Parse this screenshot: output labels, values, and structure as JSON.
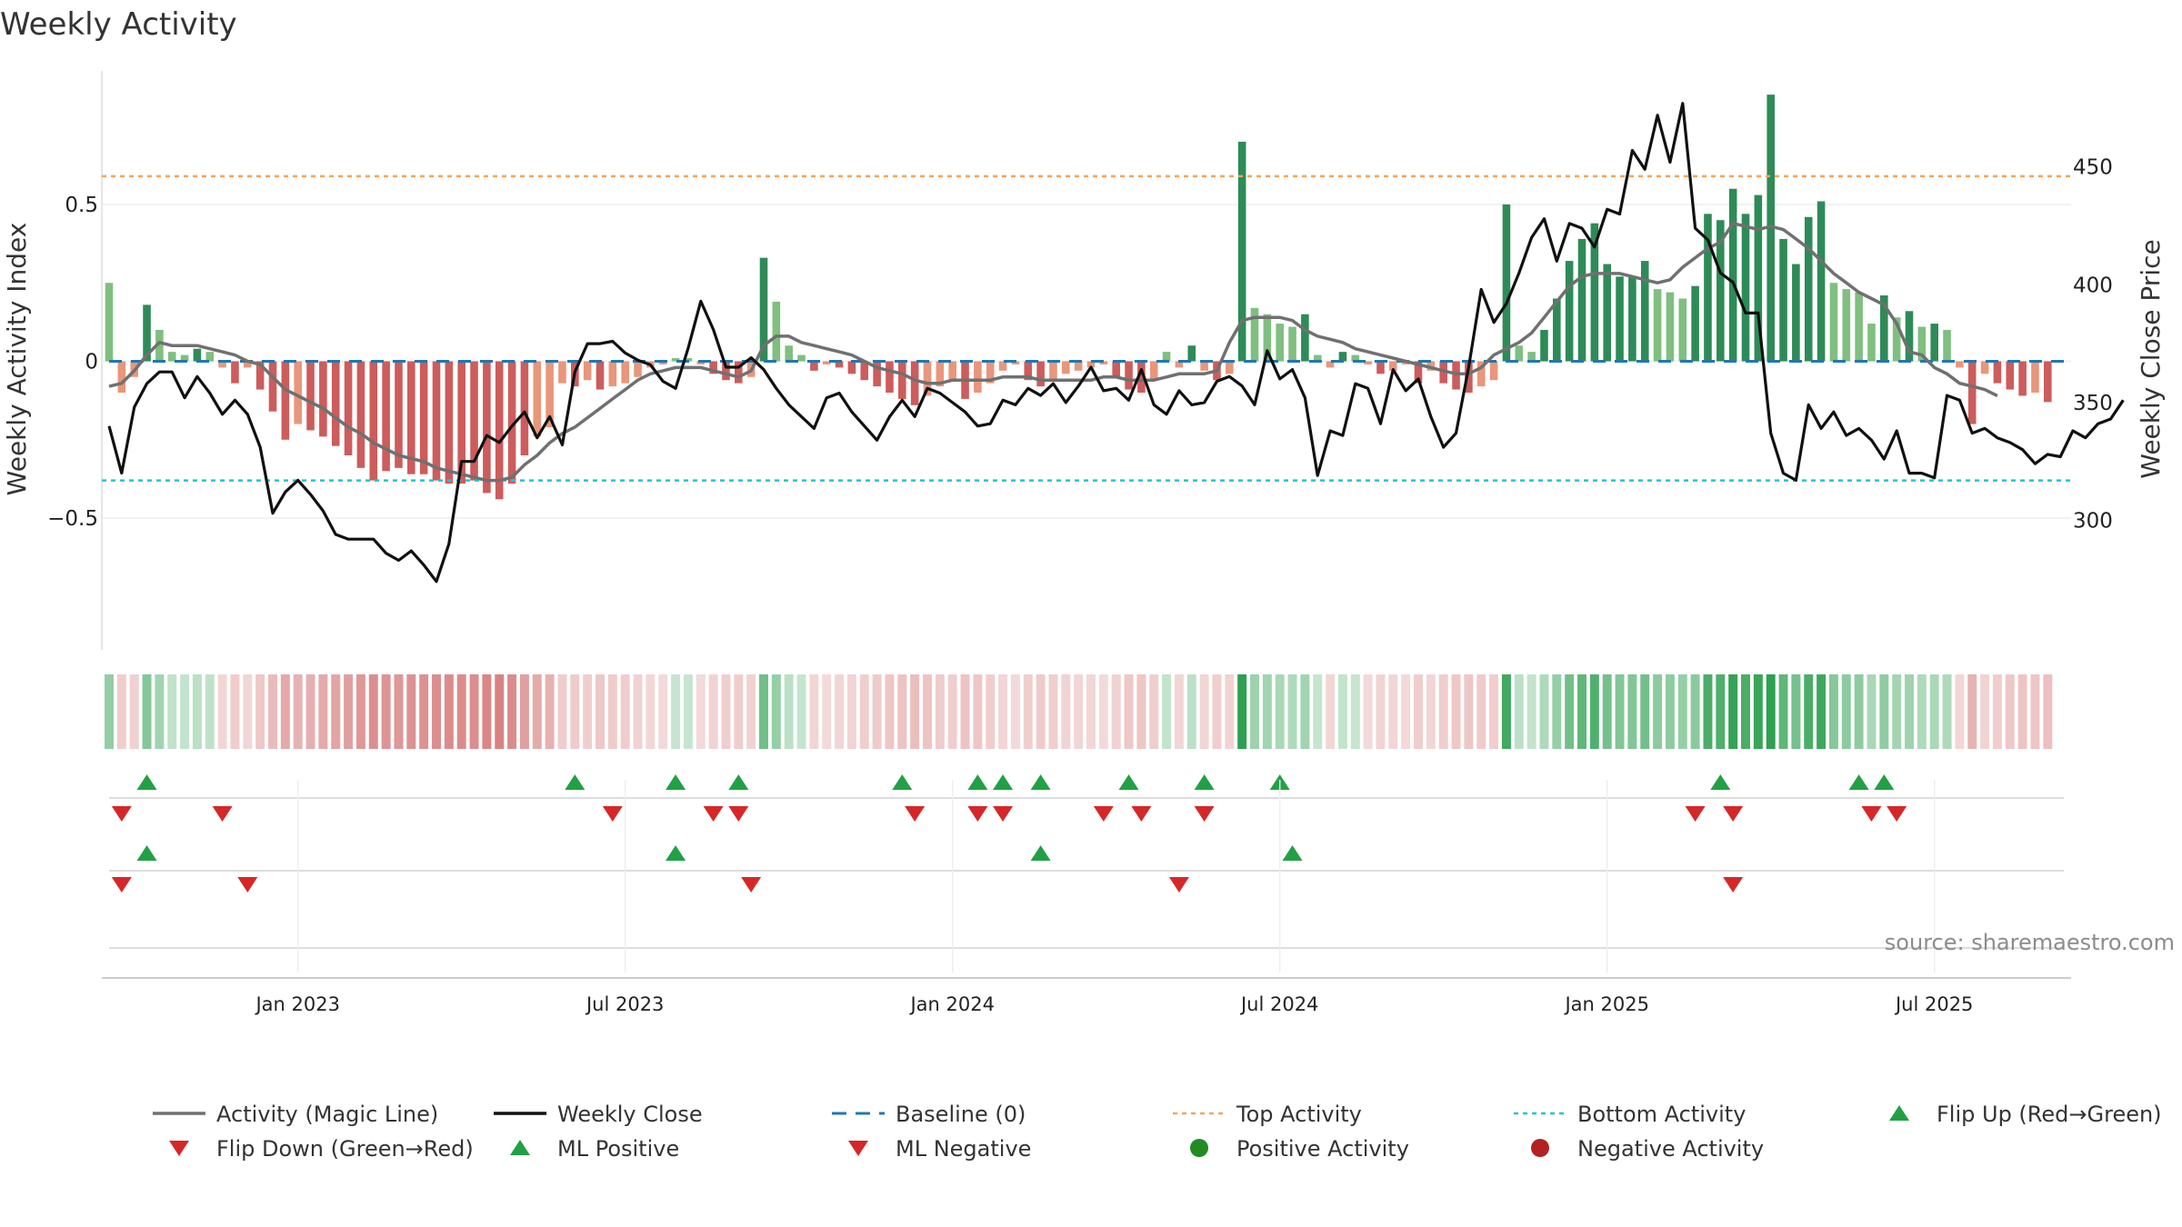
{
  "title": "Weekly Activity",
  "source": "source: sharemaestro.com",
  "colors": {
    "green_dark": "#2e8b57",
    "green_light": "#7fbf7f",
    "red_dark": "#cd5c5c",
    "red_light": "#e9967a",
    "magic": "#707070",
    "close": "#111111",
    "baseline": "#1f77b4",
    "top": "#f4a460",
    "bottom": "#20c5d0",
    "marker_up": "#22a046",
    "marker_down": "#d62728",
    "pos_dot": "#228b22",
    "neg_dot": "#b22222"
  },
  "chart_data": {
    "type": "bar+line",
    "title": "Weekly Activity",
    "ylabel_left": "Weekly Activity Index",
    "ylabel_right": "Weekly Close Price",
    "left_ylim": [
      -0.92,
      0.92
    ],
    "right_ylim": [
      245,
      490
    ],
    "left_ticks": [
      {
        "v": 0.5,
        "label": "0.5"
      },
      {
        "v": 0,
        "label": "0"
      },
      {
        "v": -0.5,
        "label": "−0.5"
      }
    ],
    "right_ticks": [
      {
        "v": 450,
        "label": "450"
      },
      {
        "v": 400,
        "label": "400"
      },
      {
        "v": 350,
        "label": "350"
      },
      {
        "v": 300,
        "label": "300"
      }
    ],
    "top_activity": 0.59,
    "bottom_activity": -0.38,
    "x_ticks": [
      {
        "w": 15,
        "label": "Jan 2023"
      },
      {
        "w": 41,
        "label": "Jul 2023"
      },
      {
        "w": 67,
        "label": "Jan 2024"
      },
      {
        "w": 93,
        "label": "Jul 2024"
      },
      {
        "w": 119,
        "label": "Jan 2025"
      },
      {
        "w": 145,
        "label": "Jul 2025"
      }
    ],
    "weeks": 157,
    "activity": [
      0.25,
      -0.1,
      -0.05,
      0.18,
      0.1,
      0.03,
      0.02,
      0.04,
      0.03,
      -0.02,
      -0.07,
      -0.02,
      -0.09,
      -0.16,
      -0.25,
      -0.2,
      -0.22,
      -0.24,
      -0.27,
      -0.3,
      -0.34,
      -0.38,
      -0.35,
      -0.34,
      -0.36,
      -0.36,
      -0.38,
      -0.39,
      -0.39,
      -0.38,
      -0.42,
      -0.44,
      -0.39,
      -0.3,
      -0.24,
      -0.21,
      -0.07,
      -0.08,
      -0.06,
      -0.09,
      -0.08,
      -0.07,
      -0.05,
      -0.02,
      -0.01,
      0.01,
      0.01,
      -0.01,
      -0.04,
      -0.06,
      -0.07,
      -0.05,
      0.33,
      0.19,
      0.05,
      0.02,
      -0.03,
      -0.01,
      -0.02,
      -0.04,
      -0.06,
      -0.08,
      -0.1,
      -0.12,
      -0.14,
      -0.11,
      -0.08,
      -0.06,
      -0.12,
      -0.1,
      -0.07,
      -0.03,
      -0.01,
      -0.06,
      -0.08,
      -0.06,
      -0.04,
      -0.03,
      -0.02,
      -0.01,
      -0.05,
      -0.09,
      -0.1,
      -0.06,
      0.03,
      -0.02,
      0.05,
      -0.03,
      -0.06,
      -0.04,
      0.7,
      0.17,
      0.15,
      0.12,
      0.11,
      0.15,
      0.02,
      -0.02,
      0.03,
      0.02,
      -0.01,
      -0.04,
      -0.03,
      -0.01,
      -0.07,
      -0.03,
      -0.07,
      -0.09,
      -0.1,
      -0.08,
      -0.06,
      0.5,
      0.05,
      0.03,
      0.1,
      0.2,
      0.32,
      0.39,
      0.44,
      0.31,
      0.27,
      0.27,
      0.32,
      0.23,
      0.22,
      0.2,
      0.24,
      0.47,
      0.45,
      0.55,
      0.47,
      0.53,
      0.85,
      0.39,
      0.31,
      0.46,
      0.51,
      0.25,
      0.23,
      0.22,
      0.12,
      0.21,
      0.14,
      0.16,
      0.11,
      0.12,
      0.1,
      -0.02,
      -0.2,
      -0.04,
      -0.07,
      -0.09,
      -0.11,
      -0.1,
      -0.13
    ],
    "magic": [
      -0.08,
      -0.07,
      -0.03,
      0.02,
      0.06,
      0.05,
      0.05,
      0.05,
      0.04,
      0.03,
      0.02,
      0.0,
      -0.01,
      -0.05,
      -0.09,
      -0.11,
      -0.13,
      -0.15,
      -0.18,
      -0.21,
      -0.23,
      -0.26,
      -0.28,
      -0.3,
      -0.31,
      -0.32,
      -0.34,
      -0.35,
      -0.36,
      -0.37,
      -0.38,
      -0.38,
      -0.37,
      -0.33,
      -0.3,
      -0.26,
      -0.23,
      -0.21,
      -0.18,
      -0.15,
      -0.12,
      -0.09,
      -0.06,
      -0.04,
      -0.03,
      -0.02,
      -0.02,
      -0.02,
      -0.03,
      -0.04,
      -0.05,
      -0.03,
      0.05,
      0.08,
      0.08,
      0.06,
      0.05,
      0.04,
      0.03,
      0.02,
      0.0,
      -0.02,
      -0.03,
      -0.04,
      -0.06,
      -0.07,
      -0.07,
      -0.06,
      -0.06,
      -0.06,
      -0.06,
      -0.05,
      -0.05,
      -0.05,
      -0.06,
      -0.06,
      -0.06,
      -0.06,
      -0.06,
      -0.05,
      -0.05,
      -0.06,
      -0.06,
      -0.06,
      -0.05,
      -0.04,
      -0.04,
      -0.04,
      -0.03,
      0.06,
      0.13,
      0.14,
      0.14,
      0.14,
      0.13,
      0.1,
      0.08,
      0.07,
      0.06,
      0.04,
      0.03,
      0.02,
      0.01,
      0.0,
      -0.01,
      -0.02,
      -0.03,
      -0.04,
      -0.04,
      -0.02,
      0.02,
      0.04,
      0.06,
      0.09,
      0.14,
      0.19,
      0.24,
      0.27,
      0.28,
      0.28,
      0.28,
      0.27,
      0.26,
      0.25,
      0.26,
      0.3,
      0.33,
      0.36,
      0.38,
      0.44,
      0.43,
      0.42,
      0.43,
      0.42,
      0.39,
      0.36,
      0.32,
      0.28,
      0.25,
      0.22,
      0.2,
      0.18,
      0.12,
      0.03,
      0.02,
      -0.02,
      -0.04,
      -0.07,
      -0.08,
      -0.09,
      -0.11
    ],
    "close": [
      340,
      320,
      348,
      358,
      363,
      363,
      352,
      361,
      354,
      345,
      351,
      345,
      331,
      303,
      312,
      317,
      311,
      304,
      294,
      292,
      292,
      292,
      286,
      283,
      287,
      281,
      274,
      290,
      325,
      325,
      336,
      333,
      340,
      346,
      335,
      344,
      332,
      363,
      375,
      375,
      376,
      371,
      368,
      366,
      359,
      356,
      373,
      393,
      381,
      365,
      365,
      369,
      364,
      356,
      349,
      344,
      339,
      352,
      354,
      346,
      340,
      334,
      344,
      351,
      344,
      356,
      354,
      350,
      346,
      340,
      341,
      351,
      349,
      356,
      353,
      358,
      350,
      357,
      365,
      355,
      356,
      351,
      364,
      349,
      345,
      355,
      349,
      350,
      359,
      361,
      357,
      349,
      372,
      360,
      364,
      352,
      319,
      338,
      336,
      358,
      356,
      341,
      364,
      355,
      360,
      344,
      331,
      337,
      365,
      398,
      384,
      392,
      405,
      420,
      428,
      410,
      426,
      424,
      416,
      432,
      430,
      457,
      449,
      472,
      452,
      477,
      424,
      419,
      405,
      401,
      388,
      388,
      337,
      320,
      317,
      349,
      339,
      346,
      336,
      339,
      334,
      326,
      338,
      320,
      320,
      318,
      353,
      351,
      337,
      339,
      335,
      333,
      330,
      324,
      328,
      327,
      338,
      335,
      341,
      343,
      351
    ],
    "heat": [
      0.36,
      0.17,
      0.12,
      0.46,
      0.27,
      0.07,
      0.05,
      0.1,
      0.07,
      0.05,
      0.17,
      0.05,
      0.21,
      0.37,
      0.57,
      0.46,
      0.5,
      0.55,
      0.62,
      0.68,
      0.77,
      0.86,
      0.8,
      0.77,
      0.82,
      0.82,
      0.86,
      0.89,
      0.89,
      0.86,
      0.95,
      1,
      0.89,
      0.68,
      0.55,
      0.48,
      0.16,
      0.18,
      0.14,
      0.21,
      0.18,
      0.16,
      0.11,
      0.05,
      0.02,
      0.03,
      0.03,
      0.02,
      0.09,
      0.14,
      0.16,
      0.11,
      0.58,
      0.34,
      0.09,
      0.04,
      0.07,
      0.02,
      0.05,
      0.09,
      0.14,
      0.18,
      0.23,
      0.27,
      0.32,
      0.25,
      0.18,
      0.14,
      0.27,
      0.23,
      0.16,
      0.07,
      0.02,
      0.14,
      0.18,
      0.14,
      0.09,
      0.07,
      0.05,
      0.02,
      0.11,
      0.21,
      0.23,
      0.14,
      0.05,
      0.05,
      0.09,
      0.07,
      0.14,
      0.09,
      1,
      0.3,
      0.26,
      0.21,
      0.19,
      0.26,
      0.04,
      0.05,
      0.05,
      0.04,
      0.02,
      0.09,
      0.07,
      0.02,
      0.16,
      0.07,
      0.16,
      0.21,
      0.23,
      0.18,
      0.14,
      0.88,
      0.09,
      0.05,
      0.18,
      0.35,
      0.56,
      0.68,
      0.77,
      0.54,
      0.47,
      0.47,
      0.56,
      0.4,
      0.39,
      0.35,
      0.42,
      0.82,
      0.79,
      0.96,
      0.82,
      0.93,
      1,
      0.68,
      0.54,
      0.81,
      0.89,
      0.44,
      0.4,
      0.39,
      0.21,
      0.37,
      0.25,
      0.28,
      0.19,
      0.21,
      0.18,
      0.05,
      0.46,
      0.09,
      0.16,
      0.21,
      0.25,
      0.23,
      0.3
    ],
    "flip_up_row1": [
      3,
      37,
      45,
      50,
      63,
      69,
      71,
      74,
      81,
      87,
      93,
      128,
      139,
      141
    ],
    "flip_down_row1": [
      1,
      9,
      40,
      48,
      50,
      64,
      69,
      71,
      79,
      82,
      87,
      126,
      129,
      140,
      142
    ],
    "ml_up_row2": [
      3,
      45,
      74,
      94
    ],
    "ml_down_row2": [
      1,
      11,
      51,
      85,
      129
    ],
    "legend": [
      {
        "key": "magic",
        "label": "Activity (Magic Line)",
        "symbol": "line"
      },
      {
        "key": "close",
        "label": "Weekly Close",
        "symbol": "line"
      },
      {
        "key": "baseline",
        "label": "Baseline (0)",
        "symbol": "dash"
      },
      {
        "key": "top",
        "label": "Top Activity",
        "symbol": "dot-line"
      },
      {
        "key": "bottom",
        "label": "Bottom Activity",
        "symbol": "dot-line"
      },
      {
        "key": "marker_up",
        "label": "Flip Up (Red→Green)",
        "symbol": "tri-up"
      },
      {
        "key": "marker_down",
        "label": "Flip Down (Green→Red)",
        "symbol": "tri-down"
      },
      {
        "key": "marker_up",
        "label": "ML Positive",
        "symbol": "tri-up"
      },
      {
        "key": "marker_down",
        "label": "ML Negative",
        "symbol": "tri-down"
      },
      {
        "key": "pos_dot",
        "label": "Positive Activity",
        "symbol": "circle"
      },
      {
        "key": "neg_dot",
        "label": "Negative Activity",
        "symbol": "circle"
      }
    ]
  }
}
